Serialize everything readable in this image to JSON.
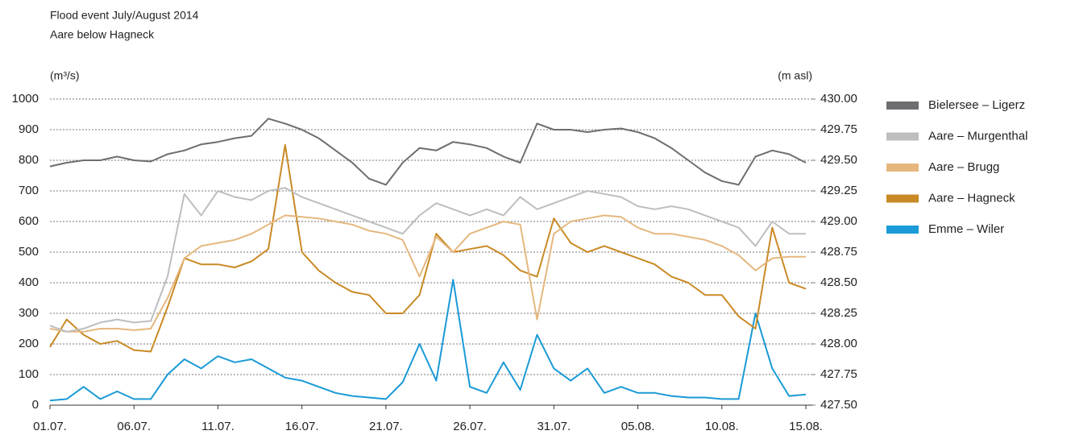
{
  "chart_data": {
    "type": "line",
    "title": "Flood event July/August 2014",
    "subtitle": "Aare below Hagneck",
    "y_label": "(m³/s)",
    "y2_label": "(m asl)",
    "categories": [
      "01.07.",
      null,
      null,
      null,
      null,
      "06.07.",
      null,
      null,
      null,
      null,
      "11.07.",
      null,
      null,
      null,
      null,
      "16.07.",
      null,
      null,
      null,
      null,
      "21.07.",
      null,
      null,
      null,
      null,
      "26.07.",
      null,
      null,
      null,
      null,
      "31.07.",
      null,
      null,
      null,
      null,
      "05.08.",
      null,
      null,
      null,
      null,
      "10.08.",
      null,
      null,
      null,
      null,
      "15.08."
    ],
    "ylim": [
      0,
      1000
    ],
    "yticks": [
      0,
      100,
      200,
      300,
      400,
      500,
      600,
      700,
      800,
      900,
      1000
    ],
    "y2lim": [
      427.5,
      430
    ],
    "y2ticks": [
      {
        "value": 427.5,
        "label": "427.50"
      },
      {
        "value": 427.75,
        "label": "427.75"
      },
      {
        "value": 428,
        "label": "428.00"
      },
      {
        "value": 428.25,
        "label": "428.25"
      },
      {
        "value": 428.5,
        "label": "428.50"
      },
      {
        "value": 428.75,
        "label": "428.75"
      },
      {
        "value": 429,
        "label": "429.00"
      },
      {
        "value": 429.25,
        "label": "429.25"
      },
      {
        "value": 429.5,
        "label": "429.50"
      },
      {
        "value": 429.75,
        "label": "429.75"
      },
      {
        "value": 430,
        "label": "430.00"
      }
    ],
    "grid": true,
    "legend": "right",
    "series": [
      {
        "name": "Bielersee – Ligerz",
        "color": "#6d6e71",
        "axis": "y2",
        "values": [
          429.45,
          429.48,
          429.5,
          429.5,
          429.53,
          429.5,
          429.49,
          429.55,
          429.58,
          429.63,
          429.65,
          429.68,
          429.7,
          429.84,
          429.8,
          429.75,
          429.68,
          429.58,
          429.48,
          429.35,
          429.3,
          429.48,
          429.6,
          429.58,
          429.65,
          429.63,
          429.6,
          429.53,
          429.48,
          429.8,
          429.75,
          429.75,
          429.73,
          429.75,
          429.76,
          429.73,
          429.68,
          429.6,
          429.5,
          429.4,
          429.33,
          429.3,
          429.53,
          429.58,
          429.55,
          429.48
        ]
      },
      {
        "name": "Aare – Murgenthal",
        "color": "#bcbec0",
        "values": [
          260,
          240,
          250,
          270,
          280,
          270,
          275,
          420,
          690,
          620,
          700,
          680,
          670,
          700,
          710,
          680,
          660,
          640,
          620,
          600,
          580,
          560,
          620,
          660,
          640,
          620,
          640,
          620,
          680,
          640,
          660,
          680,
          700,
          690,
          680,
          650,
          640,
          650,
          640,
          620,
          600,
          580,
          520,
          600,
          560,
          560
        ]
      },
      {
        "name": "Aare – Brugg",
        "color": "#e5b77e",
        "values": [
          250,
          240,
          240,
          250,
          250,
          245,
          250,
          350,
          480,
          520,
          530,
          540,
          560,
          590,
          620,
          615,
          610,
          600,
          590,
          570,
          560,
          540,
          420,
          550,
          500,
          560,
          580,
          600,
          590,
          280,
          560,
          600,
          610,
          620,
          615,
          580,
          560,
          560,
          550,
          540,
          520,
          490,
          440,
          480,
          485,
          485
        ]
      },
      {
        "name": "Aare – Hagneck",
        "color": "#c98a25",
        "values": [
          190,
          280,
          230,
          200,
          210,
          180,
          175,
          320,
          480,
          460,
          460,
          450,
          470,
          510,
          850,
          500,
          440,
          400,
          370,
          360,
          300,
          300,
          360,
          560,
          500,
          510,
          520,
          490,
          440,
          420,
          610,
          530,
          500,
          520,
          500,
          480,
          460,
          420,
          400,
          360,
          360,
          290,
          250,
          580,
          400,
          380
        ]
      },
      {
        "name": "Emme – Wiler",
        "color": "#1a9ad6",
        "values": [
          15,
          20,
          60,
          20,
          45,
          20,
          20,
          100,
          150,
          120,
          160,
          140,
          150,
          120,
          90,
          80,
          60,
          40,
          30,
          25,
          20,
          75,
          200,
          80,
          410,
          60,
          40,
          140,
          50,
          230,
          120,
          80,
          120,
          40,
          60,
          40,
          40,
          30,
          25,
          25,
          20,
          20,
          300,
          120,
          30,
          35
        ]
      }
    ]
  }
}
